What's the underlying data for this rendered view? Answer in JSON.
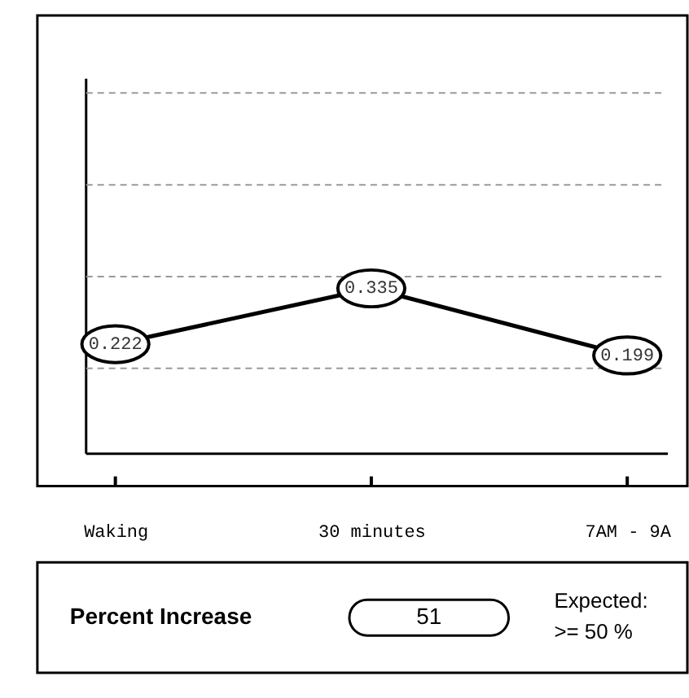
{
  "chart_data": [
    {
      "type": "line",
      "categories": [
        "Waking",
        "30 minutes",
        "7AM - 9A"
      ],
      "series": [
        {
          "color": "#000000",
          "values": [
            0.222,
            0.335,
            0.199
          ]
        }
      ],
      "ylim": [
        0,
        0.76
      ],
      "yticks": [
        {
          "value": 0.173,
          "label": null
        },
        {
          "value": 0.359,
          "label": null
        },
        {
          "value": 0.545,
          "label": null
        },
        {
          "value": 0.731,
          "label": null
        }
      ],
      "grid": "y",
      "data_labels": true,
      "marker": "circle",
      "line_style": "solid",
      "legend": false,
      "tick_labels": "x"
    },
    {
      "type": "other",
      "title": "Percent Increase",
      "annotations": [
        "51",
        "Expected:",
        ">= 50 %"
      ]
    }
  ]
}
